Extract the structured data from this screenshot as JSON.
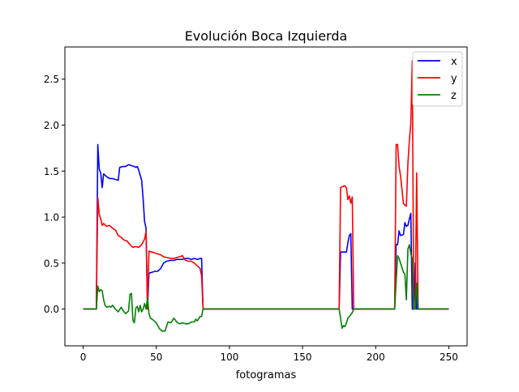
{
  "chart_data": {
    "type": "line",
    "title": "Evolución Boca Izquierda",
    "xlabel": "fotogramas",
    "ylabel": "",
    "xlim": [
      -12.5,
      262.5
    ],
    "ylim": [
      -0.4,
      2.85
    ],
    "xticks": [
      0,
      50,
      100,
      150,
      200,
      250
    ],
    "yticks": [
      0.0,
      0.5,
      1.0,
      1.5,
      2.0,
      2.5
    ],
    "xtick_labels": [
      "0",
      "50",
      "100",
      "150",
      "200",
      "250"
    ],
    "ytick_labels": [
      "0.0",
      "0.5",
      "1.0",
      "1.5",
      "2.0",
      "2.5"
    ],
    "grid": false,
    "legend_position": "top-right",
    "series": [
      {
        "name": "x",
        "color": "#0000ff",
        "points": [
          [
            0,
            0
          ],
          [
            9,
            0
          ],
          [
            10,
            1.79
          ],
          [
            11,
            1.52
          ],
          [
            12,
            1.48
          ],
          [
            13,
            1.32
          ],
          [
            14,
            1.47
          ],
          [
            16,
            1.44
          ],
          [
            18,
            1.42
          ],
          [
            20,
            1.42
          ],
          [
            22,
            1.41
          ],
          [
            24,
            1.4
          ],
          [
            25,
            1.54
          ],
          [
            27,
            1.55
          ],
          [
            29,
            1.55
          ],
          [
            31,
            1.57
          ],
          [
            33,
            1.56
          ],
          [
            35,
            1.55
          ],
          [
            36,
            1.54
          ],
          [
            37,
            1.55
          ],
          [
            38,
            1.51
          ],
          [
            40,
            1.4
          ],
          [
            41,
            1.2
          ],
          [
            42,
            0.95
          ],
          [
            43,
            0.88
          ],
          [
            44,
            0.0
          ],
          [
            45,
            0.39
          ],
          [
            47,
            0.4
          ],
          [
            49,
            0.41
          ],
          [
            51,
            0.41
          ],
          [
            53,
            0.44
          ],
          [
            55,
            0.5
          ],
          [
            57,
            0.52
          ],
          [
            60,
            0.53
          ],
          [
            62,
            0.53
          ],
          [
            64,
            0.54
          ],
          [
            66,
            0.54
          ],
          [
            68,
            0.54
          ],
          [
            70,
            0.55
          ],
          [
            72,
            0.55
          ],
          [
            74,
            0.54
          ],
          [
            76,
            0.55
          ],
          [
            78,
            0.54
          ],
          [
            80,
            0.55
          ],
          [
            81,
            0.55
          ],
          [
            82,
            0.0
          ],
          [
            175,
            0.0
          ],
          [
            176,
            0.62
          ],
          [
            178,
            0.62
          ],
          [
            180,
            0.62
          ],
          [
            181,
            0.72
          ],
          [
            182,
            0.8
          ],
          [
            183,
            0.82
          ],
          [
            184,
            0.0
          ],
          [
            213,
            0.0
          ],
          [
            214,
            0.7
          ],
          [
            215,
            0.7
          ],
          [
            216,
            0.85
          ],
          [
            217,
            0.8
          ],
          [
            219,
            0.81
          ],
          [
            220,
            0.94
          ],
          [
            221,
            0.9
          ],
          [
            222,
            0.91
          ],
          [
            223,
            0.98
          ],
          [
            224,
            1.04
          ],
          [
            225,
            0.0
          ],
          [
            226,
            0.0
          ],
          [
            227,
            0.5
          ],
          [
            228,
            0.0
          ],
          [
            250,
            0.0
          ]
        ]
      },
      {
        "name": "y",
        "color": "#ff0000",
        "points": [
          [
            0,
            0
          ],
          [
            9,
            0
          ],
          [
            10,
            1.21
          ],
          [
            11,
            1.03
          ],
          [
            12,
            0.98
          ],
          [
            13,
            0.91
          ],
          [
            14,
            0.93
          ],
          [
            16,
            0.9
          ],
          [
            18,
            0.91
          ],
          [
            20,
            0.88
          ],
          [
            22,
            0.86
          ],
          [
            24,
            0.8
          ],
          [
            26,
            0.78
          ],
          [
            28,
            0.75
          ],
          [
            30,
            0.74
          ],
          [
            32,
            0.7
          ],
          [
            34,
            0.67
          ],
          [
            36,
            0.68
          ],
          [
            38,
            0.67
          ],
          [
            40,
            0.7
          ],
          [
            42,
            0.76
          ],
          [
            43,
            0.84
          ],
          [
            44,
            0.0
          ],
          [
            45,
            0.63
          ],
          [
            47,
            0.62
          ],
          [
            49,
            0.61
          ],
          [
            51,
            0.6
          ],
          [
            53,
            0.59
          ],
          [
            55,
            0.57
          ],
          [
            57,
            0.56
          ],
          [
            60,
            0.55
          ],
          [
            62,
            0.55
          ],
          [
            64,
            0.56
          ],
          [
            66,
            0.57
          ],
          [
            68,
            0.58
          ],
          [
            69,
            0.55
          ],
          [
            70,
            0.53
          ],
          [
            72,
            0.52
          ],
          [
            74,
            0.52
          ],
          [
            76,
            0.5
          ],
          [
            78,
            0.47
          ],
          [
            80,
            0.44
          ],
          [
            81,
            0.36
          ],
          [
            82,
            0.0
          ],
          [
            175,
            0.0
          ],
          [
            176,
            1.32
          ],
          [
            177,
            1.33
          ],
          [
            179,
            1.34
          ],
          [
            180,
            1.32
          ],
          [
            181,
            1.19
          ],
          [
            182,
            1.23
          ],
          [
            183,
            1.15
          ],
          [
            184,
            1.22
          ],
          [
            185,
            0.0
          ],
          [
            213,
            0.0
          ],
          [
            214,
            1.79
          ],
          [
            215,
            1.79
          ],
          [
            216,
            1.55
          ],
          [
            217,
            1.45
          ],
          [
            218,
            1.3
          ],
          [
            219,
            1.15
          ],
          [
            220,
            1.13
          ],
          [
            221,
            1.12
          ],
          [
            222,
            1.58
          ],
          [
            223,
            1.83
          ],
          [
            224,
            2.02
          ],
          [
            225,
            2.7
          ],
          [
            226,
            0.0
          ],
          [
            227,
            0.0
          ],
          [
            228,
            1.48
          ],
          [
            229,
            0.0
          ],
          [
            250,
            0.0
          ]
        ]
      },
      {
        "name": "z",
        "color": "#008000",
        "points": [
          [
            0,
            0
          ],
          [
            9,
            0
          ],
          [
            10,
            0.25
          ],
          [
            11,
            0.19
          ],
          [
            12,
            0.21
          ],
          [
            13,
            0.2
          ],
          [
            14,
            0.1
          ],
          [
            15,
            0.04
          ],
          [
            16,
            0.02
          ],
          [
            18,
            0.03
          ],
          [
            19,
            0.02
          ],
          [
            20,
            0.04
          ],
          [
            21,
            0.02
          ],
          [
            22,
            0.0
          ],
          [
            24,
            -0.03
          ],
          [
            26,
            0.02
          ],
          [
            27,
            -0.01
          ],
          [
            29,
            -0.05
          ],
          [
            31,
            -0.02
          ],
          [
            32,
            0.16
          ],
          [
            33,
            0.17
          ],
          [
            34,
            -0.12
          ],
          [
            35,
            -0.15
          ],
          [
            36,
            0.01
          ],
          [
            37,
            0.03
          ],
          [
            38,
            -0.03
          ],
          [
            39,
            0.04
          ],
          [
            40,
            -0.03
          ],
          [
            41,
            0.0
          ],
          [
            42,
            0.06
          ],
          [
            43,
            0.0
          ],
          [
            44,
            0.12
          ],
          [
            45,
            -0.05
          ],
          [
            46,
            -0.1
          ],
          [
            48,
            -0.12
          ],
          [
            50,
            -0.15
          ],
          [
            52,
            -0.21
          ],
          [
            54,
            -0.24
          ],
          [
            56,
            -0.24
          ],
          [
            58,
            -0.14
          ],
          [
            60,
            -0.15
          ],
          [
            62,
            -0.1
          ],
          [
            64,
            -0.14
          ],
          [
            66,
            -0.16
          ],
          [
            68,
            -0.15
          ],
          [
            70,
            -0.16
          ],
          [
            72,
            -0.16
          ],
          [
            74,
            -0.14
          ],
          [
            76,
            -0.14
          ],
          [
            77,
            -0.11
          ],
          [
            78,
            -0.13
          ],
          [
            80,
            -0.08
          ],
          [
            81,
            -0.08
          ],
          [
            82,
            0.0
          ],
          [
            175,
            0.0
          ],
          [
            176,
            -0.1
          ],
          [
            177,
            -0.21
          ],
          [
            178,
            -0.18
          ],
          [
            179,
            -0.19
          ],
          [
            180,
            -0.15
          ],
          [
            181,
            -0.1
          ],
          [
            182,
            -0.08
          ],
          [
            183,
            -0.06
          ],
          [
            184,
            -0.04
          ],
          [
            185,
            0.0
          ],
          [
            213,
            0.0
          ],
          [
            214,
            0.3
          ],
          [
            215,
            0.58
          ],
          [
            216,
            0.55
          ],
          [
            217,
            0.5
          ],
          [
            218,
            0.45
          ],
          [
            219,
            0.4
          ],
          [
            220,
            0.38
          ],
          [
            221,
            0.1
          ],
          [
            222,
            0.65
          ],
          [
            223,
            0.7
          ],
          [
            224,
            0.6
          ],
          [
            225,
            0.55
          ],
          [
            226,
            0.0
          ],
          [
            227,
            0.0
          ],
          [
            228,
            0.28
          ],
          [
            229,
            0.0
          ],
          [
            250,
            0.0
          ]
        ]
      }
    ]
  }
}
